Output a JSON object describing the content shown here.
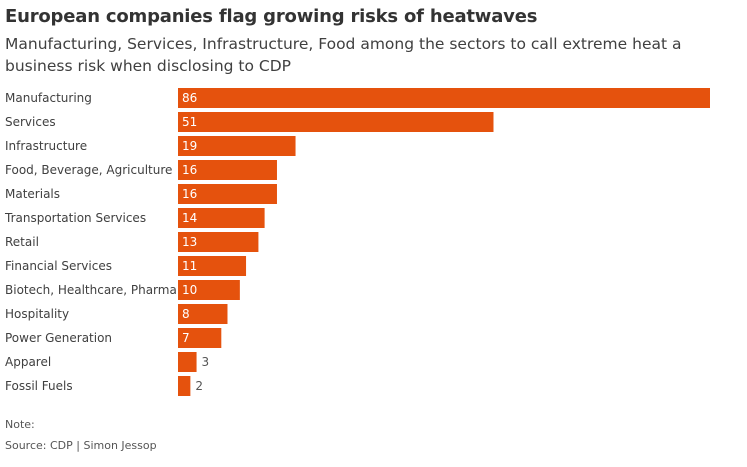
{
  "header": {
    "title": "European companies flag growing risks of heatwaves",
    "subtitle": "Manufacturing, Services, Infrastructure, Food among the sectors to call extreme heat a business risk when disclosing to CDP"
  },
  "footer": {
    "note": "Note:",
    "source": "Source: CDP | Simon Jessop"
  },
  "colors": {
    "bar": "#e5520d",
    "label_inside": "#ffffff",
    "label_outside": "#555555"
  },
  "chart_data": {
    "type": "bar",
    "orientation": "horizontal",
    "categories": [
      "Manufacturing",
      "Services",
      "Infrastructure",
      "Food, Beverage, Agriculture",
      "Materials",
      "Transportation Services",
      "Retail",
      "Financial Services",
      "Biotech, Healthcare, Pharma",
      "Hospitality",
      "Power Generation",
      "Apparel",
      "Fossil Fuels"
    ],
    "values": [
      86,
      51,
      19,
      16,
      16,
      14,
      13,
      11,
      10,
      8,
      7,
      3,
      2
    ],
    "xlim": [
      0,
      86
    ],
    "grid": false,
    "legend": "none",
    "data_labels": true
  }
}
